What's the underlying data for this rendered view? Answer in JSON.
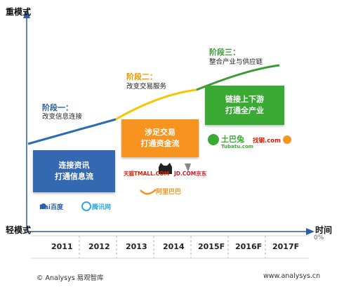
{
  "axes": {
    "y_top_label": "重模式",
    "y_bottom_label": "轻模式",
    "x_label": "时间",
    "years": [
      "2011",
      "2012",
      "2013",
      "2014",
      "2015F",
      "2016F",
      "2017F"
    ],
    "corner_mark": "0%"
  },
  "stages": [
    {
      "title": "阶段一：",
      "subtitle": "改变信息连接",
      "box_lines": [
        "连接资讯",
        "打通信息流"
      ],
      "color": "#3468b0",
      "logos": [
        "Bai百度",
        "腾讯网"
      ]
    },
    {
      "title": "阶段二：",
      "subtitle": "改变交易服务",
      "box_lines": [
        "涉足交易",
        "打通资金流"
      ],
      "color": "#f7931e",
      "logos": [
        "天猫TMALL.COM",
        "JD.COM京东",
        "阿里巴巴"
      ]
    },
    {
      "title": "阶段三：",
      "subtitle": "整合产业与供应链",
      "box_lines": [
        "链接上下游",
        "打通全产业"
      ],
      "color": "#3aaa35",
      "logos": [
        "土巴兔",
        "Tubatu.com",
        "找钢.com"
      ]
    }
  ],
  "colors": {
    "axis": "#2a5ea8",
    "curve_blue": "#2a6cb5",
    "curve_yellow": "#f3c800",
    "curve_green": "#3a9b35",
    "stage1_title": "#2a5ea8",
    "stage2_title": "#f39800",
    "stage3_title": "#3a9b35"
  },
  "footer": {
    "left": "© Analysys 易观智库",
    "right": "www.analysys.cn"
  }
}
